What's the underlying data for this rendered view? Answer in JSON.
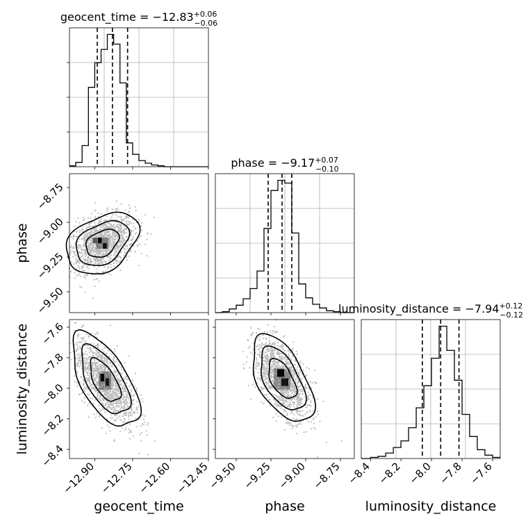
{
  "chart_data": {
    "type": "corner",
    "parameters": [
      "geocent_time",
      "phase",
      "luminosity_distance"
    ],
    "axes": {
      "geocent_time": {
        "ticks": [
          -12.9,
          -12.75,
          -12.6,
          -12.45
        ],
        "tick_labels": [
          "−12.90",
          "−12.75",
          "−12.60",
          "−12.45"
        ],
        "range": [
          -13.0,
          -12.45
        ]
      },
      "phase": {
        "ticks": [
          -9.5,
          -9.25,
          -9.0,
          -8.75
        ],
        "tick_labels": [
          "−9.50",
          "−9.25",
          "−9.00",
          "−8.75"
        ],
        "range": [
          -9.65,
          -8.65
        ]
      },
      "luminosity_distance": {
        "ticks": [
          -8.4,
          -8.2,
          -8.0,
          -7.8,
          -7.6
        ],
        "tick_labels": [
          "−8.4",
          "−8.2",
          "−8.0",
          "−7.8",
          "−7.6"
        ],
        "range": [
          -8.46,
          -7.55
        ]
      }
    },
    "diag_titles": [
      {
        "param": "geocent_time",
        "main": "geocent_time = −12.83",
        "sup": "+0.06",
        "sub": "−0.06"
      },
      {
        "param": "phase",
        "main": "phase = −9.17",
        "sup": "+0.07",
        "sub": "−0.10"
      },
      {
        "param": "luminosity_distance",
        "main": "luminosity_distance = −7.94",
        "sup": "+0.12",
        "sub": "−0.12"
      }
    ],
    "quantiles": {
      "geocent_time": [
        -12.89,
        -12.83,
        -12.77
      ],
      "phase": [
        -9.27,
        -9.17,
        -9.1
      ],
      "luminosity_distance": [
        -8.06,
        -7.94,
        -7.82
      ]
    },
    "histograms": {
      "geocent_time": {
        "edges": [
          -13.0,
          -12.975,
          -12.95,
          -12.925,
          -12.9,
          -12.875,
          -12.85,
          -12.825,
          -12.8,
          -12.775,
          -12.75,
          -12.725,
          -12.7,
          -12.675,
          -12.65,
          -12.625,
          -12.6,
          -12.575,
          -12.55,
          -12.525,
          -12.5,
          -12.45
        ],
        "counts": [
          1,
          5,
          24,
          90,
          118,
          133,
          150,
          139,
          95,
          27,
          14,
          7,
          4,
          2,
          1,
          0,
          0,
          0,
          0,
          0,
          0
        ]
      },
      "phase": {
        "edges": [
          -9.65,
          -9.6,
          -9.55,
          -9.5,
          -9.45,
          -9.4,
          -9.35,
          -9.3,
          -9.25,
          -9.2,
          -9.15,
          -9.1,
          -9.05,
          -9.0,
          -8.95,
          -8.9,
          -8.85,
          -8.8,
          -8.75,
          -8.7,
          -8.65
        ],
        "counts": [
          0,
          1,
          4,
          8,
          15,
          26,
          45,
          91,
          132,
          143,
          140,
          86,
          31,
          16,
          9,
          5,
          2,
          1,
          0,
          0
        ]
      },
      "luminosity_distance": {
        "edges": [
          -8.46,
          -8.4,
          -8.35,
          -8.3,
          -8.25,
          -8.2,
          -8.15,
          -8.1,
          -8.05,
          -8.0,
          -7.95,
          -7.9,
          -7.85,
          -7.8,
          -7.75,
          -7.7,
          -7.65,
          -7.6,
          -7.55
        ],
        "counts": [
          0,
          1,
          2,
          5,
          10,
          16,
          28,
          46,
          66,
          91,
          120,
          98,
          71,
          40,
          20,
          8,
          3,
          1
        ]
      }
    },
    "y_label_ticks": {
      "phase": [
        "−8.75",
        "−9.00",
        "−9.25",
        "−9.50"
      ],
      "luminosity_distance": [
        "−7.6",
        "−7.8",
        "−8.0",
        "−8.2",
        "−8.4"
      ]
    },
    "x_axis_labels": [
      "geocent_time",
      "phase",
      "luminosity_distance"
    ],
    "y_axis_labels": [
      "phase",
      "luminosity_distance"
    ]
  }
}
